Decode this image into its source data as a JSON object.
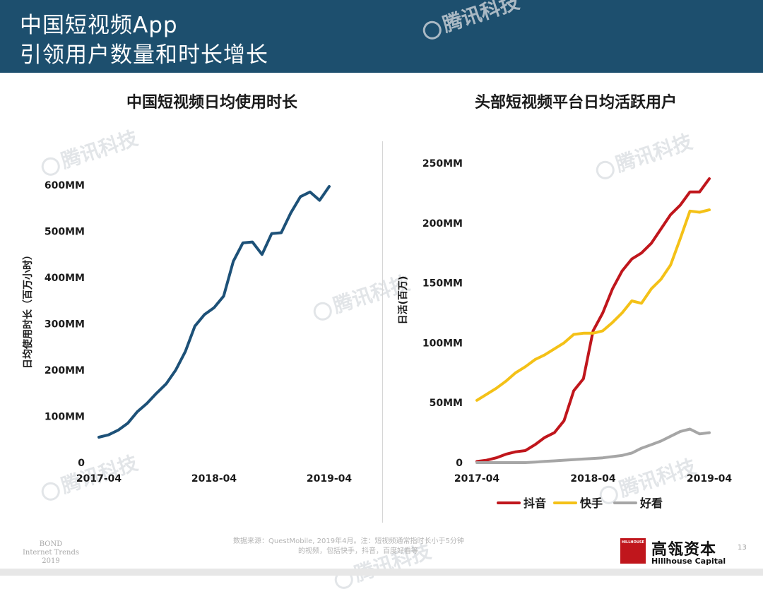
{
  "header": {
    "title_line1": "中国短视频App",
    "title_line2": "引领用户数量和时长增长"
  },
  "watermark_text": "腾讯科技",
  "chart_data": [
    {
      "type": "line",
      "title": "中国短视频日均使用时长",
      "xlabel": "",
      "ylabel": "日均使用时长（百万小时）",
      "ylim": [
        0,
        600
      ],
      "ytick_labels": [
        "0",
        "100MM",
        "200MM",
        "300MM",
        "400MM",
        "500MM",
        "600MM"
      ],
      "yticks": [
        0,
        100,
        200,
        300,
        400,
        500,
        600
      ],
      "xtick_labels": [
        "2017-04",
        "2018-04",
        "2019-04"
      ],
      "xticks": [
        "2017-04",
        "2018-04",
        "2019-04"
      ],
      "grid": false,
      "color": "#1d5178",
      "x": [
        "2017-04",
        "2017-05",
        "2017-06",
        "2017-07",
        "2017-08",
        "2017-09",
        "2017-10",
        "2017-11",
        "2017-12",
        "2018-01",
        "2018-02",
        "2018-03",
        "2018-04",
        "2018-05",
        "2018-06",
        "2018-07",
        "2018-08",
        "2018-09",
        "2018-10",
        "2018-11",
        "2018-12",
        "2019-01",
        "2019-02",
        "2019-03",
        "2019-04"
      ],
      "series": [
        {
          "values": [
            55,
            60,
            70,
            85,
            110,
            128,
            150,
            170,
            200,
            240,
            295,
            320,
            335,
            360,
            435,
            475,
            477,
            450,
            495,
            497,
            540,
            575,
            585,
            567,
            597
          ]
        }
      ]
    },
    {
      "type": "line",
      "title": "头部短视频平台日均活跃用户",
      "xlabel": "",
      "ylabel": "日活(百万)",
      "ylim": [
        0,
        250
      ],
      "ytick_labels": [
        "0",
        "50MM",
        "100MM",
        "150MM",
        "200MM",
        "250MM"
      ],
      "yticks": [
        0,
        50,
        100,
        150,
        200,
        250
      ],
      "xtick_labels": [
        "2017-04",
        "2018-04",
        "2019-04"
      ],
      "xticks": [
        "2017-04",
        "2018-04",
        "2019-04"
      ],
      "grid": false,
      "legend_position": "bottom",
      "x": [
        "2017-04",
        "2017-05",
        "2017-06",
        "2017-07",
        "2017-08",
        "2017-09",
        "2017-10",
        "2017-11",
        "2017-12",
        "2018-01",
        "2018-02",
        "2018-03",
        "2018-04",
        "2018-05",
        "2018-06",
        "2018-07",
        "2018-08",
        "2018-09",
        "2018-10",
        "2018-11",
        "2018-12",
        "2019-01",
        "2019-02",
        "2019-03",
        "2019-04"
      ],
      "series": [
        {
          "name": "抖音",
          "color": "#c0161c",
          "values": [
            1,
            2,
            4,
            7,
            9,
            10,
            15,
            21,
            25,
            35,
            60,
            70,
            110,
            125,
            145,
            160,
            170,
            175,
            183,
            195,
            207,
            215,
            226,
            226,
            237
          ]
        },
        {
          "name": "快手",
          "color": "#f4c117",
          "values": [
            52,
            57,
            62,
            68,
            75,
            80,
            86,
            90,
            95,
            100,
            107,
            108,
            108,
            110,
            117,
            125,
            135,
            133,
            145,
            153,
            165,
            187,
            210,
            209,
            211
          ]
        },
        {
          "name": "好看",
          "color": "#a6a6a6",
          "values": [
            0,
            0,
            0,
            0,
            0,
            0,
            0.5,
            1,
            1.5,
            2,
            2.5,
            3,
            3.5,
            4,
            5,
            6,
            8,
            12,
            15,
            18,
            22,
            26,
            28,
            24,
            25
          ]
        }
      ]
    }
  ],
  "footer": {
    "brand_left_line1": "BOND",
    "brand_left_line2": "Internet Trends",
    "brand_left_line3": "2019",
    "source_line1": "数据来源：QuestMobile, 2019年4月。注：短视频通常指时长小于5分钟",
    "source_line2": "的视频，包括快手，抖音，百度好看等",
    "company_box": "HILLHOUSE",
    "company_cn": "高瓴资本",
    "company_en": "Hillhouse Capital",
    "page_number": "13"
  }
}
